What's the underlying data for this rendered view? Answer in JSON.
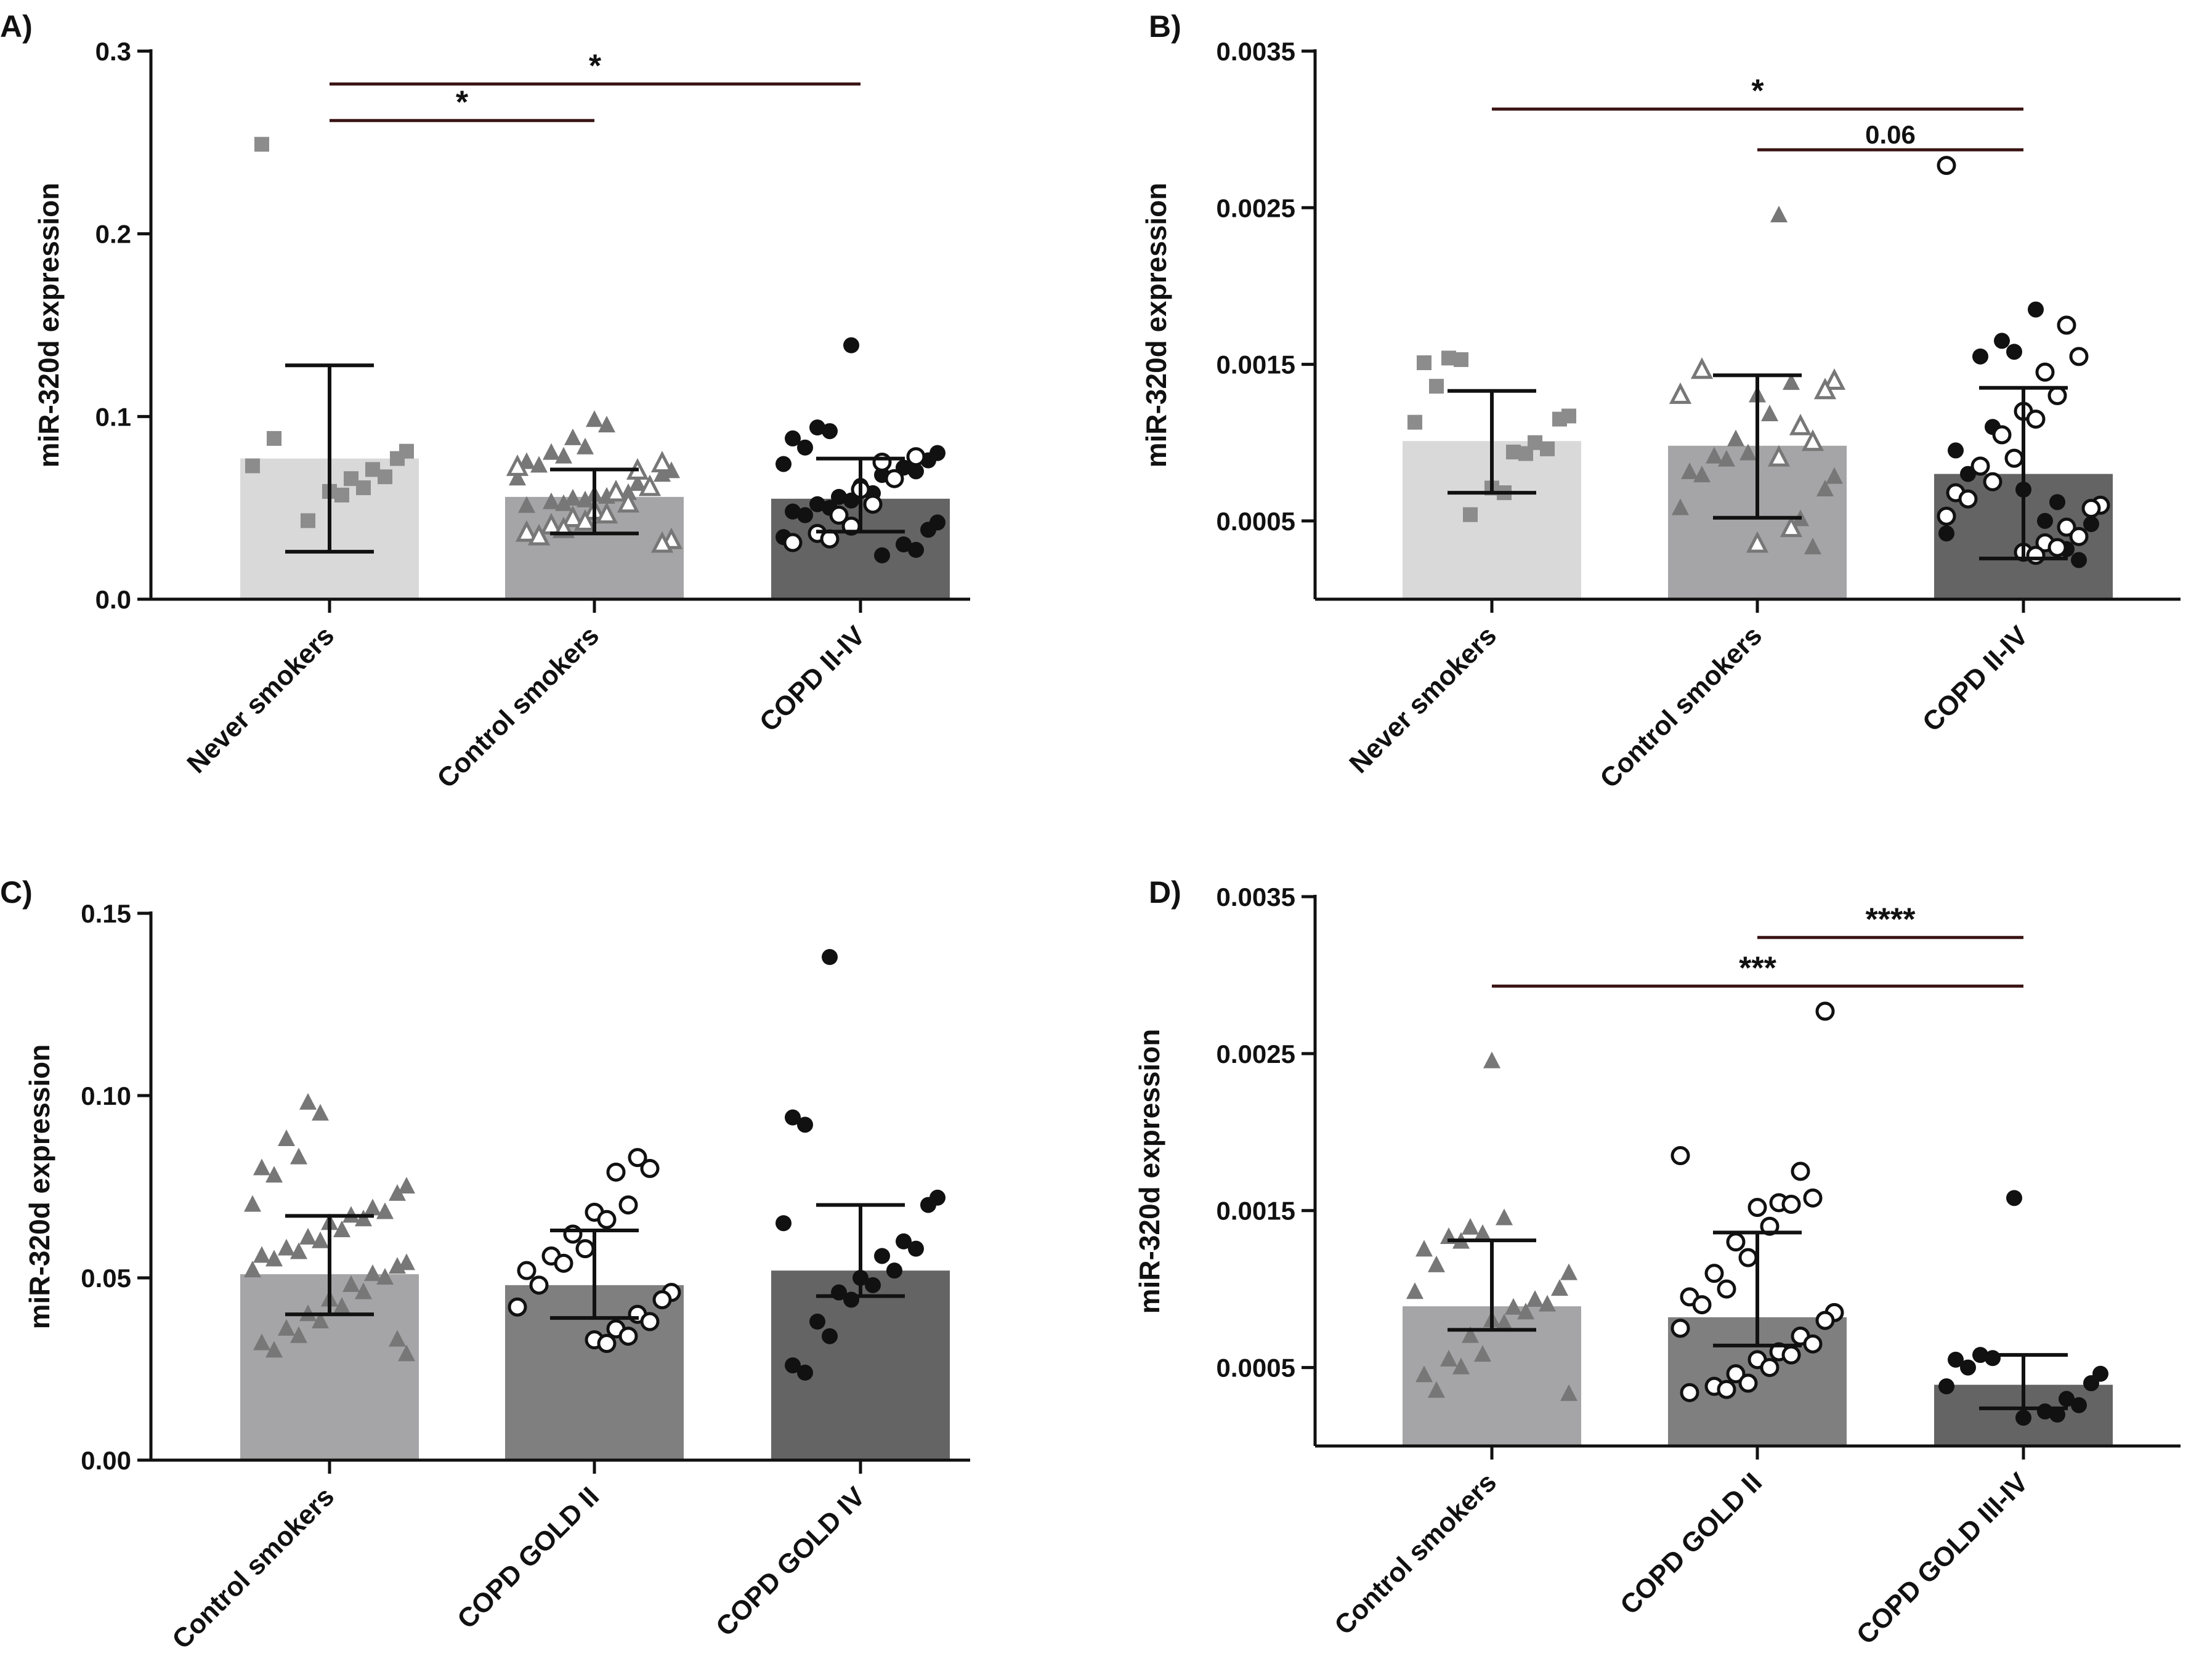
{
  "chart_data": [
    {
      "panel_label": "A)",
      "type": "bar",
      "ylabel": "miR-320d expression",
      "ylim": [
        0,
        0.3
      ],
      "yticks": [
        0.0,
        0.1,
        0.2,
        0.3
      ],
      "ytick_labels": [
        "0.0",
        "0.1",
        "0.2",
        "0.3"
      ],
      "categories": [
        "Never smokers",
        "Control smokers",
        "COPD II-IV"
      ],
      "bar_colors": [
        "#d9d9d9",
        "#a5a5a7",
        "#646464"
      ],
      "marker_color": "#8c8c8c",
      "bar_values": [
        0.077,
        0.056,
        0.055
      ],
      "error_lower": [
        0.026,
        0.036,
        0.037
      ],
      "error_upper": [
        0.128,
        0.071,
        0.077
      ],
      "points": [
        {
          "group": 0,
          "marker": "square",
          "fill": "#8c8c8c",
          "values": [
            0.249,
            0.088,
            0.081,
            0.077,
            0.073,
            0.071,
            0.067,
            0.066,
            0.061,
            0.059,
            0.057,
            0.043
          ]
        },
        {
          "group": 1,
          "marker": "triangle",
          "fill": "#777777",
          "values": [
            0.098,
            0.095,
            0.088,
            0.083,
            0.08,
            0.078,
            0.075,
            0.073,
            0.07,
            0.068,
            0.066,
            0.063,
            0.061,
            0.06,
            0.058,
            0.057,
            0.056,
            0.055,
            0.054,
            0.053,
            0.052,
            0.051
          ]
        },
        {
          "group": 1,
          "marker": "triangle-open",
          "fill": "none",
          "values": [
            0.074,
            0.072,
            0.07,
            0.061,
            0.058,
            0.052,
            0.048,
            0.046,
            0.044,
            0.042,
            0.04,
            0.038,
            0.036,
            0.034,
            0.032,
            0.03
          ]
        },
        {
          "group": 2,
          "marker": "circle",
          "fill": "#111111",
          "values": [
            0.139,
            0.094,
            0.092,
            0.088,
            0.083,
            0.08,
            0.076,
            0.074,
            0.072,
            0.07,
            0.068,
            0.066,
            0.062,
            0.058,
            0.056,
            0.054,
            0.052,
            0.05,
            0.048,
            0.046,
            0.042,
            0.038,
            0.034,
            0.03,
            0.027,
            0.024
          ]
        },
        {
          "group": 2,
          "marker": "circle-open",
          "fill": "none",
          "values": [
            0.078,
            0.075,
            0.066,
            0.06,
            0.052,
            0.046,
            0.04,
            0.036,
            0.033,
            0.031
          ]
        }
      ],
      "significance": [
        {
          "from": 0,
          "to": 1,
          "label": "*",
          "y": 0.262
        },
        {
          "from": 0,
          "to": 2,
          "label": "*",
          "y": 0.282
        }
      ]
    },
    {
      "panel_label": "B)",
      "type": "bar",
      "ylabel": "miR-320d expression",
      "ylim": [
        0,
        0.0035
      ],
      "yticks": [
        0.0005,
        0.0015,
        0.0025,
        0.0035
      ],
      "ytick_labels": [
        "0.0005",
        "0.0015",
        "0.0025",
        "0.0035"
      ],
      "categories": [
        "Never smokers",
        "Control smokers",
        "COPD II-IV"
      ],
      "bar_colors": [
        "#d9d9d9",
        "#a5a5a7",
        "#646464"
      ],
      "marker_color": "#8c8c8c",
      "bar_values": [
        0.00101,
        0.00098,
        0.0008
      ],
      "error_lower": [
        0.00068,
        0.00052,
        0.00026
      ],
      "error_upper": [
        0.00133,
        0.00143,
        0.00135
      ],
      "points": [
        {
          "group": 0,
          "marker": "square",
          "fill": "#8c8c8c",
          "values": [
            0.00154,
            0.00153,
            0.00151,
            0.00136,
            0.00117,
            0.00115,
            0.00113,
            0.001,
            0.00096,
            0.00094,
            0.00093,
            0.00071,
            0.00068,
            0.00054
          ]
        },
        {
          "group": 1,
          "marker": "triangle",
          "fill": "#777777",
          "values": [
            0.00245,
            0.00138,
            0.0013,
            0.00118,
            0.00102,
            0.00093,
            0.00091,
            0.00089,
            0.00081,
            0.00079,
            0.00078,
            0.0007,
            0.00058,
            0.00051,
            0.00033
          ]
        },
        {
          "group": 1,
          "marker": "triangle-open",
          "fill": "none",
          "values": [
            0.00146,
            0.00139,
            0.00133,
            0.0013,
            0.0011,
            0.001,
            0.0009,
            0.00045,
            0.00035
          ]
        },
        {
          "group": 2,
          "marker": "circle",
          "fill": "#111111",
          "values": [
            0.00185,
            0.00165,
            0.00158,
            0.00155,
            0.0011,
            0.00095,
            0.0008,
            0.0006,
            0.00048,
            0.00042,
            0.00032,
            0.00025,
            0.0005,
            0.00062,
            0.0007
          ]
        },
        {
          "group": 2,
          "marker": "circle-open",
          "fill": "none",
          "values": [
            0.00277,
            0.00175,
            0.00155,
            0.00145,
            0.0013,
            0.0012,
            0.00115,
            0.00105,
            0.0009,
            0.00085,
            0.00075,
            0.00068,
            0.00064,
            0.0006,
            0.00058,
            0.00053,
            0.00046,
            0.0004,
            0.00036,
            0.00033,
            0.0003,
            0.00028
          ]
        }
      ],
      "significance": [
        {
          "from": 0,
          "to": 2,
          "label": "*",
          "y": 0.00313
        },
        {
          "from": 1,
          "to": 2,
          "label": "0.06",
          "y": 0.00287
        }
      ]
    },
    {
      "panel_label": "C)",
      "type": "bar",
      "ylabel": "miR-320d expression",
      "ylim": [
        0,
        0.15
      ],
      "yticks": [
        0.0,
        0.05,
        0.1,
        0.15
      ],
      "ytick_labels": [
        "0.00",
        "0.05",
        "0.10",
        "0.15"
      ],
      "categories": [
        "Control smokers",
        "COPD GOLD II",
        "COPD GOLD IV"
      ],
      "bar_colors": [
        "#a5a5a7",
        "#7f7f7f",
        "#646464"
      ],
      "marker_color": "#777777",
      "bar_values": [
        0.051,
        0.048,
        0.052
      ],
      "error_lower": [
        0.04,
        0.039,
        0.045
      ],
      "error_upper": [
        0.067,
        0.063,
        0.07
      ],
      "points": [
        {
          "group": 0,
          "marker": "triangle",
          "fill": "#777777",
          "values": [
            0.098,
            0.095,
            0.088,
            0.083,
            0.08,
            0.078,
            0.075,
            0.073,
            0.07,
            0.069,
            0.068,
            0.067,
            0.066,
            0.065,
            0.063,
            0.061,
            0.06,
            0.058,
            0.057,
            0.056,
            0.055,
            0.054,
            0.053,
            0.052,
            0.051,
            0.05,
            0.048,
            0.046,
            0.044,
            0.042,
            0.04,
            0.038,
            0.036,
            0.034,
            0.032,
            0.03,
            0.029,
            0.033
          ]
        },
        {
          "group": 1,
          "marker": "circle-open",
          "fill": "none",
          "values": [
            0.083,
            0.08,
            0.079,
            0.07,
            0.068,
            0.066,
            0.062,
            0.058,
            0.056,
            0.054,
            0.052,
            0.048,
            0.046,
            0.044,
            0.042,
            0.04,
            0.038,
            0.036,
            0.034,
            0.033,
            0.032
          ]
        },
        {
          "group": 2,
          "marker": "circle",
          "fill": "#111111",
          "values": [
            0.138,
            0.094,
            0.092,
            0.072,
            0.07,
            0.065,
            0.06,
            0.058,
            0.056,
            0.052,
            0.05,
            0.048,
            0.046,
            0.044,
            0.038,
            0.034,
            0.026,
            0.024
          ]
        }
      ],
      "significance": []
    },
    {
      "panel_label": "D)",
      "type": "bar",
      "ylabel": "miR-320d expression",
      "ylim": [
        0,
        0.0035
      ],
      "yticks": [
        0.0005,
        0.0015,
        0.0025,
        0.0035
      ],
      "ytick_labels": [
        "0.0005",
        "0.0015",
        "0.0025",
        "0.0035"
      ],
      "categories": [
        "Control smokers",
        "COPD GOLD II",
        "COPD GOLD III-IV"
      ],
      "bar_colors": [
        "#a5a5a7",
        "#7f7f7f",
        "#646464"
      ],
      "marker_color": "#777777",
      "bar_values": [
        0.00089,
        0.00082,
        0.00039
      ],
      "error_lower": [
        0.00074,
        0.00064,
        0.00024
      ],
      "error_upper": [
        0.00131,
        0.00136,
        0.00058
      ],
      "points": [
        {
          "group": 0,
          "marker": "triangle",
          "fill": "#777777",
          "values": [
            0.00245,
            0.00145,
            0.00139,
            0.00135,
            0.00133,
            0.0013,
            0.00125,
            0.00115,
            0.0011,
            0.001,
            0.00098,
            0.00093,
            0.0009,
            0.00088,
            0.00085,
            0.0008,
            0.00078,
            0.0007,
            0.00058,
            0.00055,
            0.0005,
            0.00045,
            0.00035,
            0.00033
          ]
        },
        {
          "group": 1,
          "marker": "circle-open",
          "fill": "none",
          "values": [
            0.00277,
            0.00185,
            0.00175,
            0.00158,
            0.00155,
            0.00154,
            0.00152,
            0.0014,
            0.0013,
            0.0012,
            0.0011,
            0.001,
            0.00095,
            0.0009,
            0.00085,
            0.0008,
            0.00075,
            0.0007,
            0.00065,
            0.0006,
            0.00058,
            0.00055,
            0.0005,
            0.00046,
            0.0004,
            0.00038,
            0.00036,
            0.00034
          ]
        },
        {
          "group": 2,
          "marker": "circle",
          "fill": "#111111",
          "values": [
            0.00158,
            0.00058,
            0.00056,
            0.00055,
            0.0005,
            0.00046,
            0.0004,
            0.00038,
            0.0003,
            0.00026,
            0.00022,
            0.0002,
            0.00018
          ]
        }
      ],
      "significance": [
        {
          "from": 1,
          "to": 2,
          "label": "****",
          "y": 0.00324
        },
        {
          "from": 0,
          "to": 2,
          "label": "***",
          "y": 0.00293
        }
      ]
    }
  ]
}
